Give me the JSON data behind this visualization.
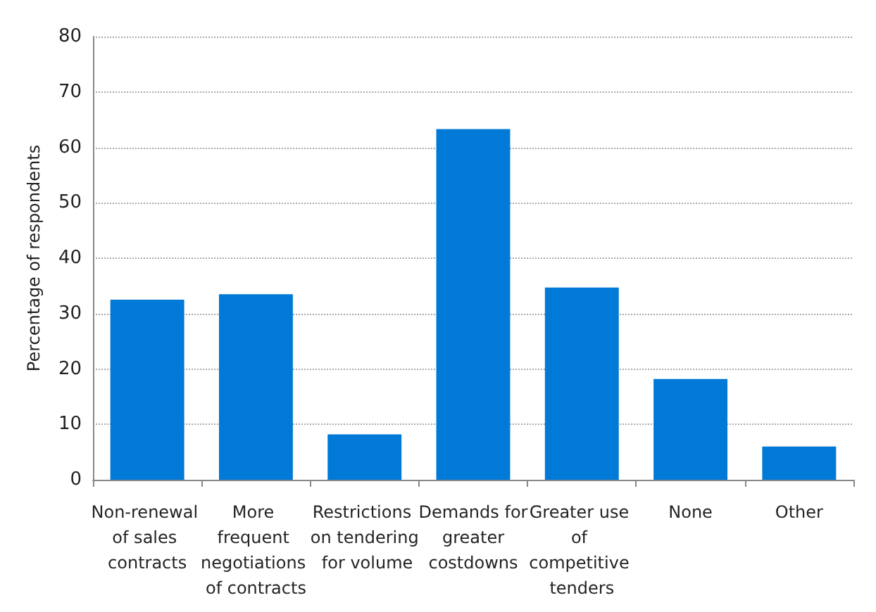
{
  "chart_data": {
    "type": "bar",
    "ylabel": "Percentage of respondents",
    "categories": [
      "Non-renewal of sales contracts",
      "More frequent negotiations of contracts",
      "Restrictions on tendering for volume",
      "Demands for greater costdowns",
      "Greater use of competitive tenders",
      "None",
      "Other"
    ],
    "values": [
      32.5,
      33.5,
      8.2,
      63.3,
      34.7,
      18.2,
      6.0
    ],
    "color": "#0079d7",
    "ylim": [
      0,
      80
    ],
    "yticks": [
      0,
      10,
      20,
      30,
      40,
      50,
      60,
      70,
      80
    ],
    "grid": "y"
  }
}
